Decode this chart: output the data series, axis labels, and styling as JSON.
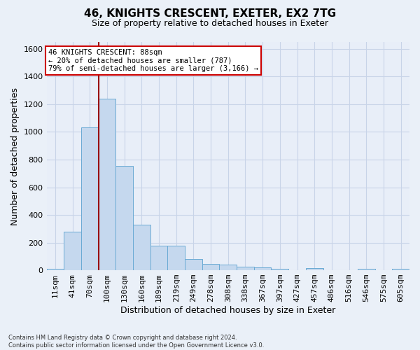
{
  "title1": "46, KNIGHTS CRESCENT, EXETER, EX2 7TG",
  "title2": "Size of property relative to detached houses in Exeter",
  "xlabel": "Distribution of detached houses by size in Exeter",
  "ylabel": "Number of detached properties",
  "footnote": "Contains HM Land Registry data © Crown copyright and database right 2024.\nContains public sector information licensed under the Open Government Licence v3.0.",
  "bin_labels": [
    "11sqm",
    "41sqm",
    "70sqm",
    "100sqm",
    "130sqm",
    "160sqm",
    "189sqm",
    "219sqm",
    "249sqm",
    "278sqm",
    "308sqm",
    "338sqm",
    "367sqm",
    "397sqm",
    "427sqm",
    "457sqm",
    "486sqm",
    "516sqm",
    "546sqm",
    "575sqm",
    "605sqm"
  ],
  "bar_heights": [
    10,
    280,
    1035,
    1240,
    755,
    330,
    180,
    180,
    80,
    45,
    40,
    25,
    20,
    12,
    0,
    15,
    0,
    0,
    12,
    0,
    12
  ],
  "bar_color": "#c5d8ee",
  "bar_edge_color": "#6aaad4",
  "ylim": [
    0,
    1650
  ],
  "yticks": [
    0,
    200,
    400,
    600,
    800,
    1000,
    1200,
    1400,
    1600
  ],
  "vline_x": 2.5,
  "vline_color": "#990000",
  "annotation_line1": "46 KNIGHTS CRESCENT: 88sqm",
  "annotation_line2": "← 20% of detached houses are smaller (787)",
  "annotation_line3": "79% of semi-detached houses are larger (3,166) →",
  "annotation_box_color": "#cc0000",
  "bg_color": "#eaf0f8",
  "plot_bg_color": "#e8eef8",
  "grid_color": "#c8d4e8",
  "title1_fontsize": 11,
  "title2_fontsize": 9,
  "xlabel_fontsize": 9,
  "ylabel_fontsize": 9,
  "tick_fontsize": 8,
  "footnote_fontsize": 6
}
